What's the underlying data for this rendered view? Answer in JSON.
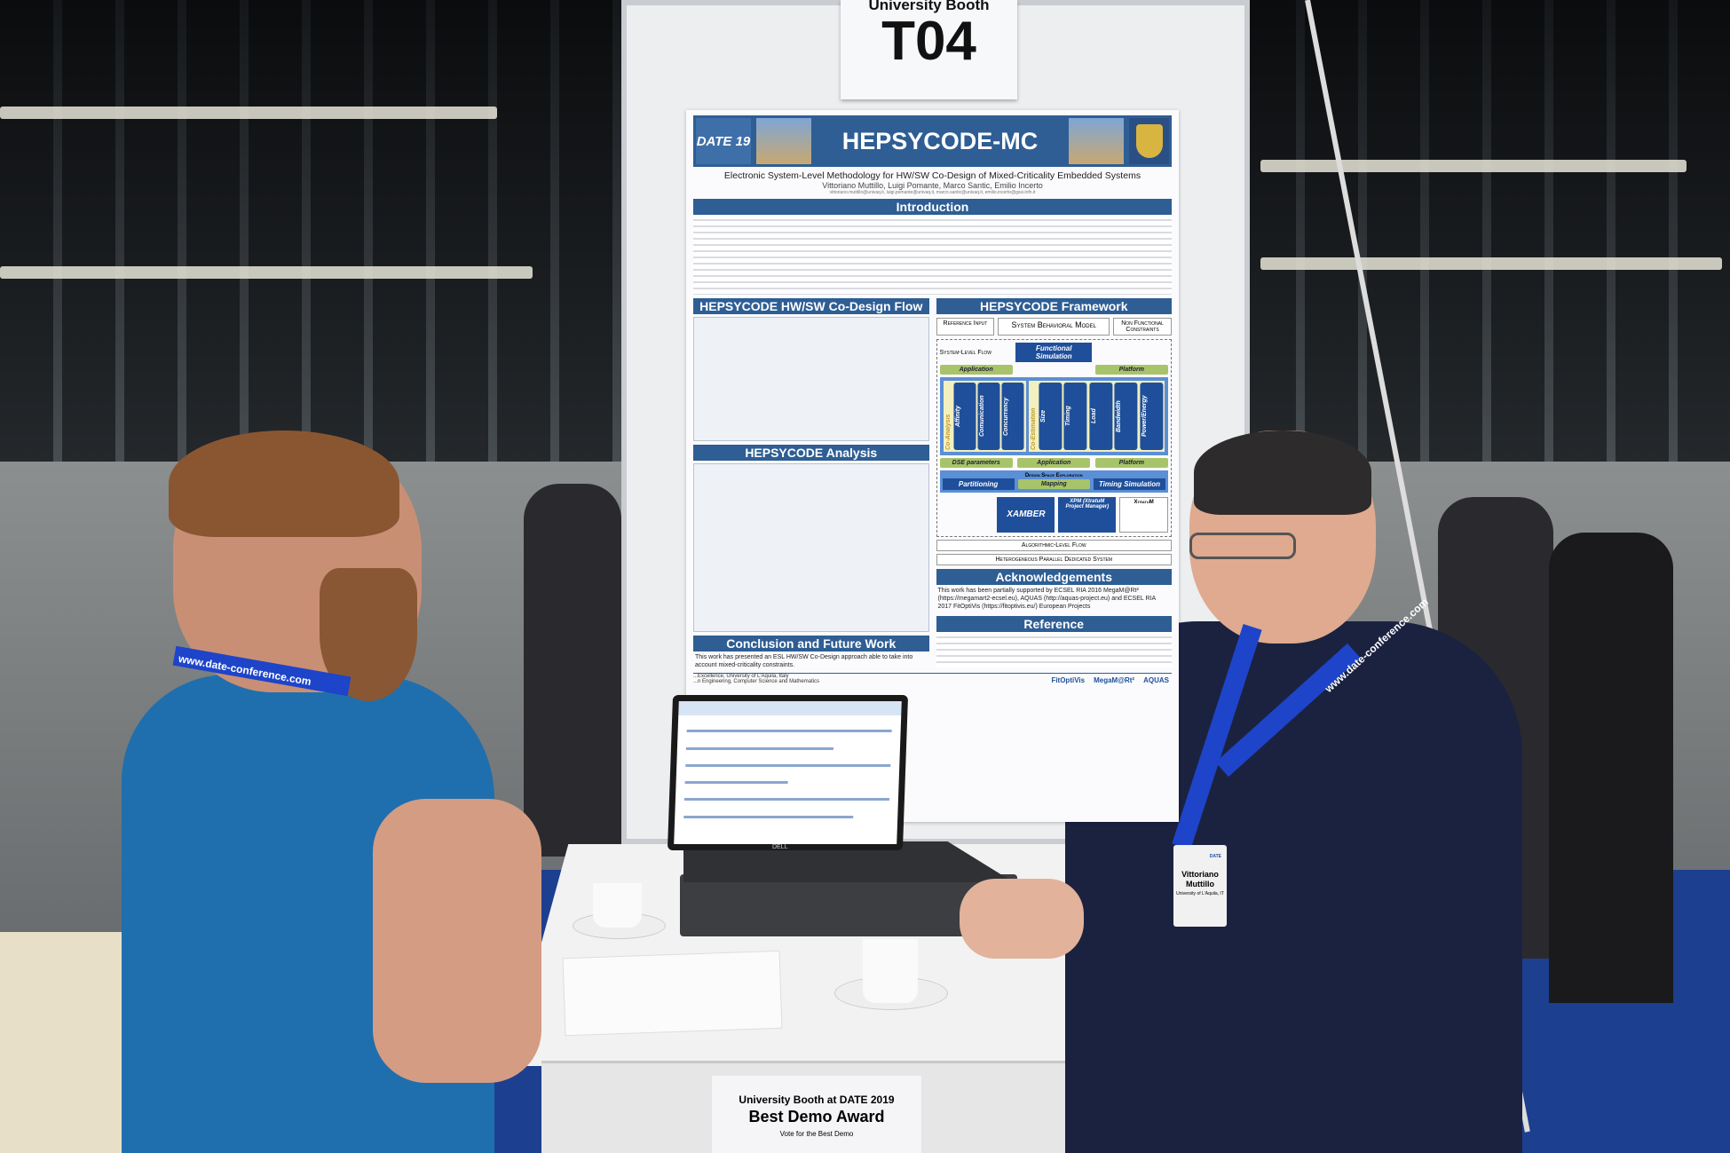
{
  "booth_sign": {
    "line1": "University Booth",
    "number": "T04"
  },
  "poster": {
    "logo": "DATE 19",
    "title": "HEPSYCODE-MC",
    "subtitle": "Electronic System-Level Methodology for HW/SW Co-Design of Mixed-Criticality Embedded Systems",
    "authors": "Vittoriano Muttillo, Luigi Pomante, Marco Santic, Emilio Incerto",
    "emails": "vittoriano.muttillo@univaq.it, luigi.pomante@univaq.it, marco.santic@univaq.it, emilio.incerto@gssi.infn.it",
    "sections": {
      "introduction": "Introduction",
      "flow": "HEPSYCODE HW/SW Co-Design Flow",
      "analysis": "HEPSYCODE Analysis",
      "framework": "HEPSYCODE Framework",
      "conclusion": "Conclusion and Future Work",
      "acknowledgements": "Acknowledgements",
      "reference": "Reference"
    },
    "framework": {
      "reference_input": "Reference Input",
      "system_model": "System Behavioral Model",
      "non_functional": "Non Functional Constraints",
      "system_level_flow": "System-Level Flow",
      "functional_simulation": "Functional Simulation",
      "application": "Application",
      "platform": "Platform",
      "co_analysis": [
        "Affinity",
        "Comunication",
        "Concurrency"
      ],
      "co_estimation": [
        "Size",
        "Timing",
        "Load",
        "Bandwidth",
        "Power/Energy"
      ],
      "dse_parameters": "DSE parameters",
      "dse": "Design Space Exploration",
      "partitioning": "Partitioning",
      "mapping": "Mapping",
      "timing_simulation": "Timing Simulation",
      "xamber": "XAMBER",
      "xpm": "XPM (XtratuM Project Manager)",
      "xtratum": "XtratuM",
      "algorithmic_flow": "Algorithmic-Level Flow",
      "hpds": "Heterogeneous Parallel Dedicated System"
    },
    "conclusion_text": "This work has presented an ESL HW/SW Co-Design approach able to take into account mixed-criticality constraints.",
    "acknowledgements_text": "This work has been partially supported by ECSEL RIA 2016 MegaM@Rt² (https://megamart2-ecsel.eu), AQUAS (http://aquas-project.eu) and ECSEL RIA 2017 FitOptiVis (https://fitoptivis.eu/) European Projects",
    "affiliation_1": "...Excellence, University of L'Aquila, Italy",
    "affiliation_2": "...n Engineering, Computer Science and Mathematics",
    "footer_logos": [
      "FitOptiVis",
      "MegaM@Rt²",
      "AQUAS"
    ]
  },
  "laptop": {
    "brand": "DELL"
  },
  "award_sign": {
    "line1": "University Booth at DATE 2019",
    "line2": "Best Demo Award",
    "line3": "Vote for the Best Demo"
  },
  "lanyard_text": "www.date-conference.com",
  "badge": {
    "name": "Vittoriano Muttillo",
    "affiliation": "University of L'Aquila, IT",
    "logo": "DATE"
  },
  "colors": {
    "poster_blue": "#2e5e94",
    "shirt_blue": "#1f6fae",
    "lanyard_blue": "#1e44c9",
    "carpet_blue": "#1d3f8f"
  }
}
